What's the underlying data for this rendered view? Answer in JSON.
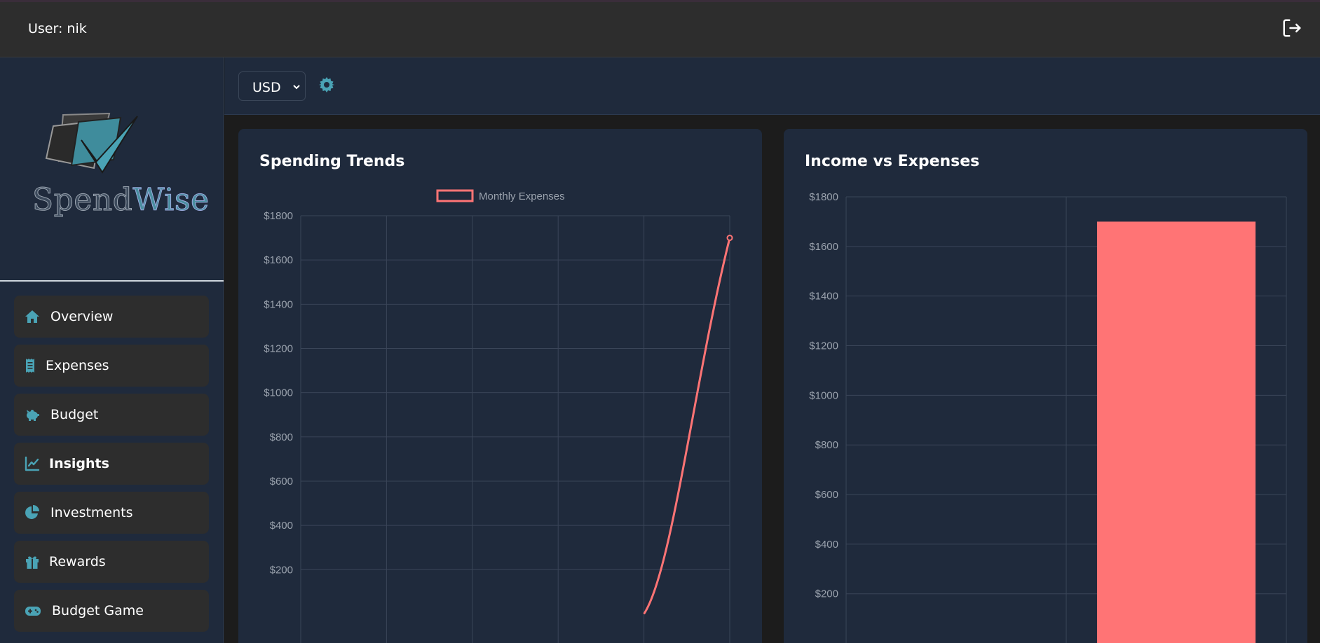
{
  "header": {
    "user_label": "User: nik",
    "logout_icon": "logout-icon"
  },
  "sidebar": {
    "logo": {
      "word1": "Spend",
      "word2": "Wise"
    },
    "items": [
      {
        "label": "Overview",
        "icon": "home-icon"
      },
      {
        "label": "Expenses",
        "icon": "receipt-icon"
      },
      {
        "label": "Budget",
        "icon": "piggy-bank-icon"
      },
      {
        "label": "Insights",
        "icon": "chart-line-icon",
        "active": true
      },
      {
        "label": "Investments",
        "icon": "pie-chart-icon"
      },
      {
        "label": "Rewards",
        "icon": "gift-icon"
      },
      {
        "label": "Budget Game",
        "icon": "gamepad-icon"
      }
    ]
  },
  "toolbar": {
    "currency": "USD",
    "settings_icon": "gear-icon"
  },
  "colors": {
    "accent": "#4aa3b5",
    "expense": "#ff7475",
    "panel": "#1f2a3c",
    "nav_item": "#2d2d2d"
  },
  "chart_data": [
    {
      "type": "line",
      "title": "Spending Trends",
      "series": [
        {
          "name": "Monthly Expenses",
          "x_index": [
            4,
            5
          ],
          "values": [
            0,
            1700
          ]
        }
      ],
      "x_count": 6,
      "ylim": [
        0,
        1800
      ],
      "yticks": [
        "$200",
        "$400",
        "$600",
        "$800",
        "$1000",
        "$1200",
        "$1400",
        "$1600",
        "$1800"
      ],
      "ytick_values": [
        200,
        400,
        600,
        800,
        1000,
        1200,
        1400,
        1600,
        1800
      ],
      "legend": "top-center",
      "grid": true
    },
    {
      "type": "bar",
      "title": "Income vs Expenses",
      "categories": [
        "",
        ""
      ],
      "values": [
        0,
        1700
      ],
      "ylim": [
        0,
        1800
      ],
      "yticks": [
        "$200",
        "$400",
        "$600",
        "$800",
        "$1000",
        "$1200",
        "$1400",
        "$1600",
        "$1800"
      ],
      "ytick_values": [
        200,
        400,
        600,
        800,
        1000,
        1200,
        1400,
        1600,
        1800
      ],
      "grid": true
    }
  ]
}
